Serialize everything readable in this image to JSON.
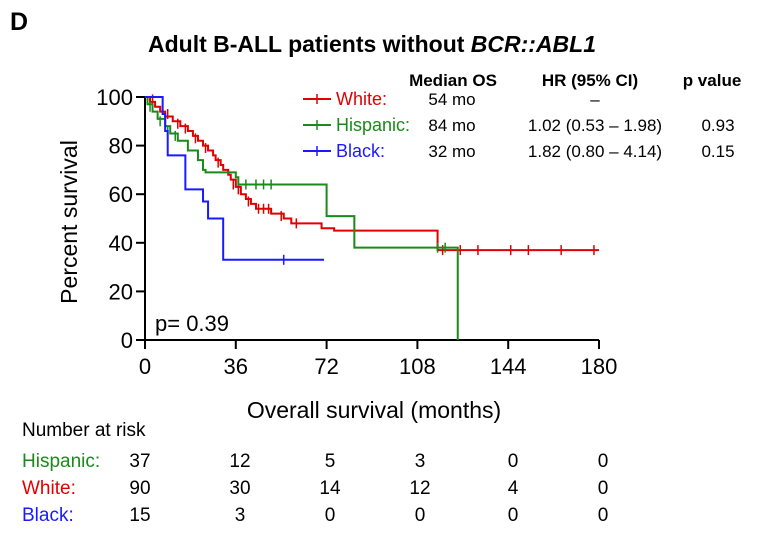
{
  "panel_label": "D",
  "title_prefix": "Adult B-ALL patients without ",
  "title_italic": "BCR::ABL1",
  "stats_table": {
    "headers": {
      "median": "Median OS",
      "hr": "HR (95% CI)",
      "p": "p value"
    },
    "rows": [
      {
        "group": "White:",
        "median": "54 mo",
        "hr": "–",
        "p": "",
        "color": "#e00000"
      },
      {
        "group": "Hispanic:",
        "median": "84 mo",
        "hr": "1.02 (0.53 – 1.98)",
        "p": "0.93",
        "color": "#1a8a1a"
      },
      {
        "group": "Black:",
        "median": "32 mo",
        "hr": "1.82 (0.80 – 4.14)",
        "p": "0.15",
        "color": "#1a1aff"
      }
    ]
  },
  "p_overall": "p= 0.39",
  "risk_table": {
    "title": "Number at risk",
    "rows": [
      {
        "group": "Hispanic:",
        "color": "#1a8a1a",
        "counts": [
          "37",
          "12",
          "5",
          "3",
          "0",
          "0"
        ]
      },
      {
        "group": "White:",
        "color": "#e00000",
        "counts": [
          "90",
          "30",
          "14",
          "12",
          "4",
          "0"
        ]
      },
      {
        "group": "Black:",
        "color": "#1a1aff",
        "counts": [
          "15",
          "3",
          "0",
          "0",
          "0",
          "0"
        ]
      }
    ]
  },
  "chart_data": {
    "type": "line",
    "title": "Adult B-ALL patients without BCR::ABL1",
    "xlabel": "Overall survival (months)",
    "ylabel": "Percent survival",
    "xlim": [
      0,
      180
    ],
    "ylim": [
      0,
      100
    ],
    "xticks": [
      0,
      36,
      72,
      108,
      144,
      180
    ],
    "yticks": [
      0,
      20,
      40,
      60,
      80,
      100
    ],
    "grid": false,
    "legend": "top-right",
    "series": [
      {
        "name": "White",
        "color": "#e00000",
        "steps": [
          [
            0,
            100
          ],
          [
            2,
            98
          ],
          [
            4,
            96
          ],
          [
            6,
            94
          ],
          [
            8,
            92
          ],
          [
            11,
            90
          ],
          [
            14,
            88
          ],
          [
            17,
            86
          ],
          [
            19,
            84
          ],
          [
            21,
            82
          ],
          [
            23,
            80
          ],
          [
            25,
            78
          ],
          [
            27,
            76
          ],
          [
            28,
            74
          ],
          [
            30,
            72
          ],
          [
            31,
            70
          ],
          [
            33,
            68
          ],
          [
            34,
            66
          ],
          [
            36,
            63
          ],
          [
            38,
            60
          ],
          [
            40,
            58
          ],
          [
            42,
            56
          ],
          [
            44,
            54
          ],
          [
            50,
            52
          ],
          [
            55,
            50
          ],
          [
            58,
            48
          ],
          [
            66,
            48
          ],
          [
            70,
            46
          ],
          [
            75,
            45
          ],
          [
            80,
            45
          ],
          [
            115,
            45
          ],
          [
            116,
            37
          ],
          [
            180,
            37
          ]
        ],
        "censor": [
          [
            3,
            99
          ],
          [
            7,
            95
          ],
          [
            9,
            93
          ],
          [
            13,
            89
          ],
          [
            16,
            87
          ],
          [
            20,
            83
          ],
          [
            24,
            79
          ],
          [
            29,
            73
          ],
          [
            35,
            64
          ],
          [
            37,
            62
          ],
          [
            41,
            57
          ],
          [
            45,
            54
          ],
          [
            47,
            54
          ],
          [
            49,
            54
          ],
          [
            54,
            51
          ],
          [
            60,
            48
          ],
          [
            118,
            37
          ],
          [
            125,
            37
          ],
          [
            132,
            37
          ],
          [
            145,
            37
          ],
          [
            152,
            37
          ],
          [
            165,
            37
          ],
          [
            178,
            37
          ]
        ]
      },
      {
        "name": "Hispanic",
        "color": "#1a8a1a",
        "steps": [
          [
            0,
            100
          ],
          [
            1,
            97
          ],
          [
            3,
            94
          ],
          [
            5,
            91
          ],
          [
            8,
            88
          ],
          [
            10,
            85
          ],
          [
            13,
            82
          ],
          [
            17,
            78
          ],
          [
            21,
            74
          ],
          [
            23,
            70
          ],
          [
            24,
            69
          ],
          [
            36,
            67
          ],
          [
            37,
            64
          ],
          [
            71,
            64
          ],
          [
            72,
            51
          ],
          [
            82,
            51
          ],
          [
            83,
            38
          ],
          [
            112,
            38
          ],
          [
            113,
            38
          ],
          [
            123,
            38
          ],
          [
            124,
            0
          ]
        ],
        "censor": [
          [
            2,
            96
          ],
          [
            6,
            90
          ],
          [
            9,
            86
          ],
          [
            12,
            84
          ],
          [
            40,
            64
          ],
          [
            44,
            64
          ],
          [
            47,
            64
          ],
          [
            50,
            64
          ],
          [
            116,
            38
          ],
          [
            119,
            38
          ]
        ]
      },
      {
        "name": "Black",
        "color": "#1a1aff",
        "steps": [
          [
            0,
            100
          ],
          [
            6,
            100
          ],
          [
            7,
            93
          ],
          [
            8,
            86
          ],
          [
            9,
            76
          ],
          [
            15,
            76
          ],
          [
            16,
            62
          ],
          [
            22,
            62
          ],
          [
            23,
            57
          ],
          [
            25,
            50
          ],
          [
            30,
            50
          ],
          [
            31,
            33
          ],
          [
            71,
            33
          ]
        ],
        "censor": [
          [
            55,
            33
          ]
        ]
      }
    ]
  }
}
